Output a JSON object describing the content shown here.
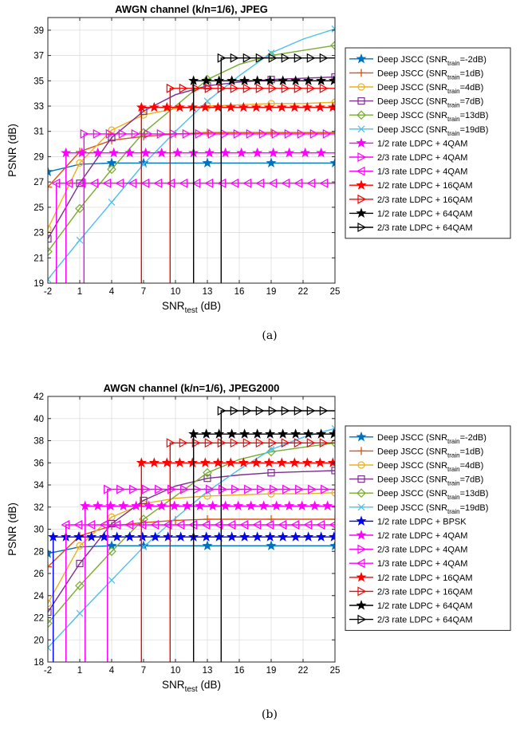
{
  "chart_data": [
    {
      "type": "line",
      "title": "AWGN channel (k/n=1/6), JPEG",
      "xlabel_main": "SNR",
      "xlabel_sub": "test",
      "xlabel_tail": " (dB)",
      "ylabel": "PSNR (dB)",
      "xlim": [
        -2,
        25
      ],
      "ylim": [
        19,
        40
      ],
      "xticks": [
        -2,
        1,
        4,
        7,
        10,
        13,
        16,
        19,
        22,
        25
      ],
      "yticks": [
        19,
        21,
        23,
        25,
        27,
        29,
        31,
        33,
        35,
        37,
        39
      ],
      "grid": true,
      "legend_placement": "right",
      "caption": "(a)",
      "series": [
        {
          "name": "Deep JSCC (SNR_train=-2dB)",
          "legend": [
            "Deep JSCC (SNR",
            "train",
            "=-2dB)"
          ],
          "color": "#0072BD",
          "marker": "star",
          "x": [
            -2,
            1,
            4,
            7,
            10,
            13,
            16,
            19,
            22,
            25
          ],
          "y": [
            27.8,
            28.4,
            28.5,
            28.5,
            28.5,
            28.5,
            28.5,
            28.5,
            28.5,
            28.5
          ],
          "markers_at": [
            -2,
            4,
            7,
            13,
            19,
            25
          ]
        },
        {
          "name": "Deep JSCC (SNR_train=1dB)",
          "legend": [
            "Deep JSCC (SNR",
            "train",
            "=1dB)"
          ],
          "color": "#D95319",
          "marker": "plus",
          "x": [
            -2,
            1,
            4,
            7,
            10,
            13,
            16,
            19,
            22,
            25
          ],
          "y": [
            26.6,
            29.4,
            30.3,
            30.6,
            30.8,
            30.9,
            30.9,
            30.9,
            30.9,
            30.9
          ],
          "markers_at": [
            -2,
            1,
            4,
            7,
            10,
            13,
            19,
            25
          ]
        },
        {
          "name": "Deep JSCC (SNR_train=4dB)",
          "legend": [
            "Deep JSCC (SNR",
            "train",
            "=4dB)"
          ],
          "color": "#EDB120",
          "marker": "circle",
          "x": [
            -2,
            1,
            4,
            7,
            10,
            13,
            16,
            19,
            22,
            25
          ],
          "y": [
            23.3,
            28.5,
            31.1,
            32.3,
            32.8,
            33.0,
            33.1,
            33.2,
            33.2,
            33.3
          ],
          "markers_at": [
            -2,
            1,
            4,
            7,
            13,
            19,
            25
          ]
        },
        {
          "name": "Deep JSCC (SNR_train=7dB)",
          "legend": [
            "Deep JSCC (SNR",
            "train",
            "=7dB)"
          ],
          "color": "#7E2F8E",
          "marker": "square",
          "x": [
            -2,
            1,
            4,
            7,
            10,
            13,
            16,
            19,
            22,
            25
          ],
          "y": [
            22.5,
            26.9,
            30.5,
            32.6,
            33.9,
            34.6,
            34.9,
            35.1,
            35.2,
            35.3
          ],
          "markers_at": [
            -2,
            1,
            4,
            7,
            13,
            19,
            25
          ]
        },
        {
          "name": "Deep JSCC (SNR_train=13dB)",
          "legend": [
            "Deep JSCC (SNR",
            "train",
            "=13dB)"
          ],
          "color": "#77AC30",
          "marker": "diamond",
          "x": [
            -2,
            1,
            4,
            7,
            10,
            13,
            16,
            19,
            22,
            25
          ],
          "y": [
            21.5,
            24.9,
            28.0,
            30.9,
            33.0,
            35.1,
            36.3,
            37.0,
            37.4,
            37.8
          ],
          "markers_at": [
            -2,
            1,
            4,
            7,
            13,
            19,
            25
          ]
        },
        {
          "name": "Deep JSCC (SNR_train=19dB)",
          "legend": [
            "Deep JSCC (SNR",
            "train",
            "=19dB)"
          ],
          "color": "#4DBEEE",
          "marker": "x",
          "x": [
            -2,
            1,
            4,
            7,
            10,
            13,
            16,
            19,
            22,
            25
          ],
          "y": [
            19.3,
            22.4,
            25.4,
            28.4,
            31.0,
            33.4,
            35.4,
            37.2,
            38.3,
            39.1
          ],
          "markers_at": [
            -2,
            1,
            4,
            7,
            13,
            19,
            25
          ]
        },
        {
          "name": "1/2 rate LDPC + 4QAM",
          "legend": [
            "1/2 rate LDPC + 4QAM",
            "",
            ""
          ],
          "color": "#FF00FF",
          "marker": "star",
          "x": [
            -0.3,
            -0.3,
            25
          ],
          "y": [
            19,
            29.3,
            29.3
          ],
          "markers_every": 1.5
        },
        {
          "name": "2/3 rate LDPC + 4QAM",
          "legend": [
            "2/3 rate LDPC + 4QAM",
            "",
            ""
          ],
          "color": "#FF00FF",
          "marker": "tri-right",
          "x": [
            1.4,
            1.4,
            25
          ],
          "y": [
            19,
            30.8,
            30.8
          ],
          "markers_every": 1.2
        },
        {
          "name": "1/3 rate LDPC + 4QAM",
          "legend": [
            "1/3 rate LDPC + 4QAM",
            "",
            ""
          ],
          "color": "#FF00FF",
          "marker": "tri-left",
          "x": [
            -1.2,
            -1.2,
            25
          ],
          "y": [
            19,
            26.9,
            26.9
          ],
          "markers_every": 1.2
        },
        {
          "name": "1/2 rate LDPC + 16QAM",
          "legend": [
            "1/2 rate LDPC + 16QAM",
            "",
            ""
          ],
          "color": "#FF0000",
          "marker": "star",
          "x": [
            6.8,
            6.8,
            25
          ],
          "y": [
            19,
            32.9,
            32.9
          ],
          "markers_every": 1.2
        },
        {
          "name": "2/3 rate LDPC + 16QAM",
          "legend": [
            "2/3 rate LDPC + 16QAM",
            "",
            ""
          ],
          "color": "#FF0000",
          "marker": "tri-right",
          "x": [
            9.5,
            9.5,
            25
          ],
          "y": [
            19,
            34.4,
            34.4
          ],
          "markers_every": 1.2
        },
        {
          "name": "1/2 rate LDPC + 64QAM",
          "legend": [
            "1/2 rate LDPC + 64QAM",
            "",
            ""
          ],
          "color": "#000000",
          "marker": "star",
          "x": [
            11.7,
            11.7,
            25
          ],
          "y": [
            19,
            35.0,
            35.0
          ],
          "markers_every": 1.2
        },
        {
          "name": "2/3 rate LDPC + 64QAM",
          "legend": [
            "2/3 rate LDPC + 64QAM",
            "",
            ""
          ],
          "color": "#000000",
          "marker": "tri-right",
          "x": [
            14.3,
            14.3,
            25
          ],
          "y": [
            19,
            36.8,
            36.8
          ],
          "markers_every": 1.2
        }
      ]
    },
    {
      "type": "line",
      "title": "AWGN channel (k/n=1/6), JPEG2000",
      "xlabel_main": "SNR",
      "xlabel_sub": "test",
      "xlabel_tail": " (dB)",
      "ylabel": "PSNR (dB)",
      "xlim": [
        -2,
        25
      ],
      "ylim": [
        18,
        42
      ],
      "xticks": [
        -2,
        1,
        4,
        7,
        10,
        13,
        16,
        19,
        22,
        25
      ],
      "yticks": [
        18,
        20,
        22,
        24,
        26,
        28,
        30,
        32,
        34,
        36,
        38,
        40,
        42
      ],
      "grid": true,
      "legend_placement": "right",
      "caption": "(b)",
      "series": [
        {
          "name": "Deep JSCC (SNR_train=-2dB)",
          "legend": [
            "Deep JSCC (SNR",
            "train",
            "=-2dB)"
          ],
          "color": "#0072BD",
          "marker": "star",
          "x": [
            -2,
            1,
            4,
            7,
            10,
            13,
            16,
            19,
            22,
            25
          ],
          "y": [
            27.8,
            28.4,
            28.5,
            28.5,
            28.5,
            28.5,
            28.5,
            28.5,
            28.5,
            28.5
          ],
          "markers_at": [
            -2,
            4,
            7,
            13,
            19,
            25
          ]
        },
        {
          "name": "Deep JSCC (SNR_train=1dB)",
          "legend": [
            "Deep JSCC (SNR",
            "train",
            "=1dB)"
          ],
          "color": "#D95319",
          "marker": "plus",
          "x": [
            -2,
            1,
            4,
            7,
            10,
            13,
            16,
            19,
            22,
            25
          ],
          "y": [
            26.6,
            29.4,
            30.3,
            30.6,
            30.8,
            30.9,
            30.9,
            30.9,
            30.9,
            30.9
          ],
          "markers_at": [
            -2,
            1,
            4,
            7,
            10,
            13,
            19,
            25
          ]
        },
        {
          "name": "Deep JSCC (SNR_train=4dB)",
          "legend": [
            "Deep JSCC (SNR",
            "train",
            "=4dB)"
          ],
          "color": "#EDB120",
          "marker": "circle",
          "x": [
            -2,
            1,
            4,
            7,
            10,
            13,
            16,
            19,
            22,
            25
          ],
          "y": [
            23.3,
            28.5,
            31.1,
            32.3,
            32.8,
            33.0,
            33.1,
            33.2,
            33.2,
            33.3
          ],
          "markers_at": [
            -2,
            1,
            4,
            7,
            13,
            19,
            25
          ]
        },
        {
          "name": "Deep JSCC (SNR_train=7dB)",
          "legend": [
            "Deep JSCC (SNR",
            "train",
            "=7dB)"
          ],
          "color": "#7E2F8E",
          "marker": "square",
          "x": [
            -2,
            1,
            4,
            7,
            10,
            13,
            16,
            19,
            22,
            25
          ],
          "y": [
            22.5,
            26.9,
            30.5,
            32.6,
            33.9,
            34.6,
            34.9,
            35.1,
            35.2,
            35.3
          ],
          "markers_at": [
            -2,
            1,
            4,
            7,
            13,
            19,
            25
          ]
        },
        {
          "name": "Deep JSCC (SNR_train=13dB)",
          "legend": [
            "Deep JSCC (SNR",
            "train",
            "=13dB)"
          ],
          "color": "#77AC30",
          "marker": "diamond",
          "x": [
            -2,
            1,
            4,
            7,
            10,
            13,
            16,
            19,
            22,
            25
          ],
          "y": [
            21.5,
            24.9,
            28.0,
            30.9,
            33.0,
            35.1,
            36.3,
            37.0,
            37.4,
            37.8
          ],
          "markers_at": [
            -2,
            1,
            4,
            7,
            13,
            19,
            25
          ]
        },
        {
          "name": "Deep JSCC (SNR_train=19dB)",
          "legend": [
            "Deep JSCC (SNR",
            "train",
            "=19dB)"
          ],
          "color": "#4DBEEE",
          "marker": "x",
          "x": [
            -2,
            1,
            4,
            7,
            10,
            13,
            16,
            19,
            22,
            25
          ],
          "y": [
            19.3,
            22.4,
            25.4,
            28.4,
            31.0,
            33.4,
            35.4,
            37.2,
            38.3,
            39.1
          ],
          "markers_at": [
            -2,
            1,
            4,
            7,
            13,
            19,
            25
          ]
        },
        {
          "name": "1/2 rate LDPC + BPSK",
          "legend": [
            "1/2 rate LDPC + BPSK",
            "",
            ""
          ],
          "color": "#0000FF",
          "marker": "star",
          "x": [
            -1.5,
            -1.5,
            25
          ],
          "y": [
            18,
            29.3,
            29.3
          ],
          "markers_every": 1.2
        },
        {
          "name": "1/2 rate LDPC + 4QAM",
          "legend": [
            "1/2 rate LDPC + 4QAM",
            "",
            ""
          ],
          "color": "#FF00FF",
          "marker": "star",
          "x": [
            1.5,
            1.5,
            25
          ],
          "y": [
            18,
            32.1,
            32.1
          ],
          "markers_every": 1.2
        },
        {
          "name": "2/3 rate LDPC + 4QAM",
          "legend": [
            "2/3 rate LDPC + 4QAM",
            "",
            ""
          ],
          "color": "#FF00FF",
          "marker": "tri-right",
          "x": [
            3.6,
            3.6,
            25
          ],
          "y": [
            18,
            33.6,
            33.6
          ],
          "markers_every": 1.2
        },
        {
          "name": "1/3 rate LDPC + 4QAM",
          "legend": [
            "1/3 rate LDPC + 4QAM",
            "",
            ""
          ],
          "color": "#FF00FF",
          "marker": "tri-left",
          "x": [
            -0.3,
            -0.3,
            25
          ],
          "y": [
            18,
            30.4,
            30.4
          ],
          "markers_every": 1.2
        },
        {
          "name": "1/2 rate LDPC + 16QAM",
          "legend": [
            "1/2 rate LDPC + 16QAM",
            "",
            ""
          ],
          "color": "#FF0000",
          "marker": "star",
          "x": [
            6.8,
            6.8,
            25
          ],
          "y": [
            18,
            36.0,
            36.0
          ],
          "markers_every": 1.2
        },
        {
          "name": "2/3 rate LDPC + 16QAM",
          "legend": [
            "2/3 rate LDPC + 16QAM",
            "",
            ""
          ],
          "color": "#FF0000",
          "marker": "tri-right",
          "x": [
            9.5,
            9.5,
            25
          ],
          "y": [
            18,
            37.8,
            37.8
          ],
          "markers_every": 1.2
        },
        {
          "name": "1/2 rate LDPC + 64QAM",
          "legend": [
            "1/2 rate LDPC + 64QAM",
            "",
            ""
          ],
          "color": "#000000",
          "marker": "star",
          "x": [
            11.7,
            11.7,
            25
          ],
          "y": [
            18,
            38.6,
            38.6
          ],
          "markers_every": 1.2
        },
        {
          "name": "2/3 rate LDPC + 64QAM",
          "legend": [
            "2/3 rate LDPC + 64QAM",
            "",
            ""
          ],
          "color": "#000000",
          "marker": "tri-right",
          "x": [
            14.3,
            14.3,
            25
          ],
          "y": [
            18,
            40.7,
            40.7
          ],
          "markers_every": 1.2
        }
      ]
    }
  ]
}
